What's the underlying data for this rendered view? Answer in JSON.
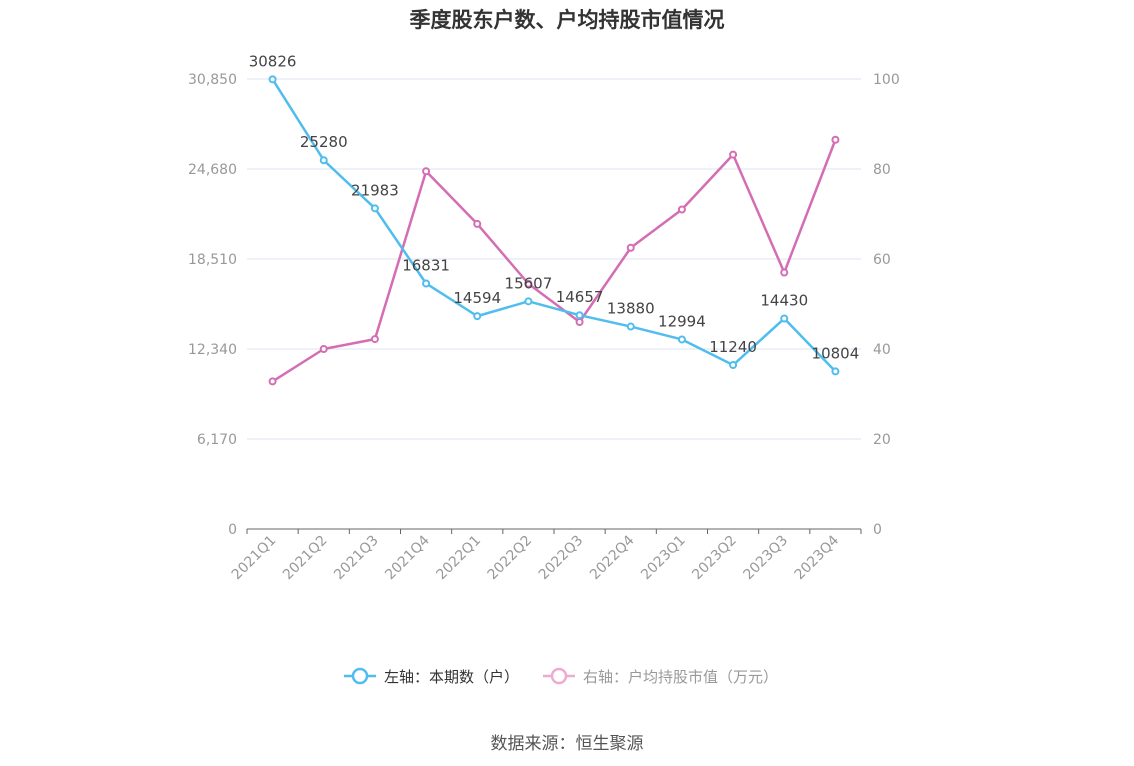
{
  "title": "季度股东户数、户均持股市值情况",
  "source": "数据来源：恒生聚源",
  "colors": {
    "left_series": "#4fbdee",
    "right_series": "#d46db3",
    "right_series_legend": "#efaad2",
    "grid": "#dfe3f0",
    "axis": "#666666",
    "tick_text": "#999999",
    "label_text": "#444444"
  },
  "legend": {
    "left_label": "左轴：本期数（户）",
    "right_label": "右轴：户均持股市值（万元）"
  },
  "chart_data": {
    "type": "line",
    "categories": [
      "2021Q1",
      "2021Q2",
      "2021Q3",
      "2021Q4",
      "2022Q1",
      "2022Q2",
      "2022Q3",
      "2022Q4",
      "2023Q1",
      "2023Q2",
      "2023Q3",
      "2023Q4"
    ],
    "left_axis": {
      "ticks": [
        0,
        6170,
        12340,
        18510,
        24680,
        30850
      ],
      "tick_labels": [
        "0",
        "6,170",
        "12,340",
        "18,510",
        "24,680",
        "30,850"
      ],
      "ylim": [
        0,
        30850
      ]
    },
    "right_axis": {
      "ticks": [
        0,
        20,
        40,
        60,
        80,
        100
      ],
      "tick_labels": [
        "0",
        "20",
        "40",
        "60",
        "80",
        "100"
      ],
      "ylim": [
        0,
        100
      ]
    },
    "grid": true,
    "legend_position": "bottom",
    "series": [
      {
        "name": "左轴：本期数（户）",
        "axis": "left",
        "values": [
          30826,
          25280,
          21983,
          16831,
          14594,
          15607,
          14657,
          13880,
          12994,
          11240,
          14430,
          10804
        ],
        "data_labels": [
          "30826",
          "25280",
          "21983",
          "16831",
          "14594",
          "15607",
          "14657",
          "13880",
          "12994",
          "11240",
          "14430",
          "10804"
        ]
      },
      {
        "name": "右轴：户均持股市值（万元）",
        "axis": "right",
        "values": [
          32.8,
          40.0,
          42.2,
          79.5,
          67.8,
          54.5,
          46.0,
          62.5,
          71.0,
          83.2,
          57.0,
          86.5
        ]
      }
    ]
  }
}
